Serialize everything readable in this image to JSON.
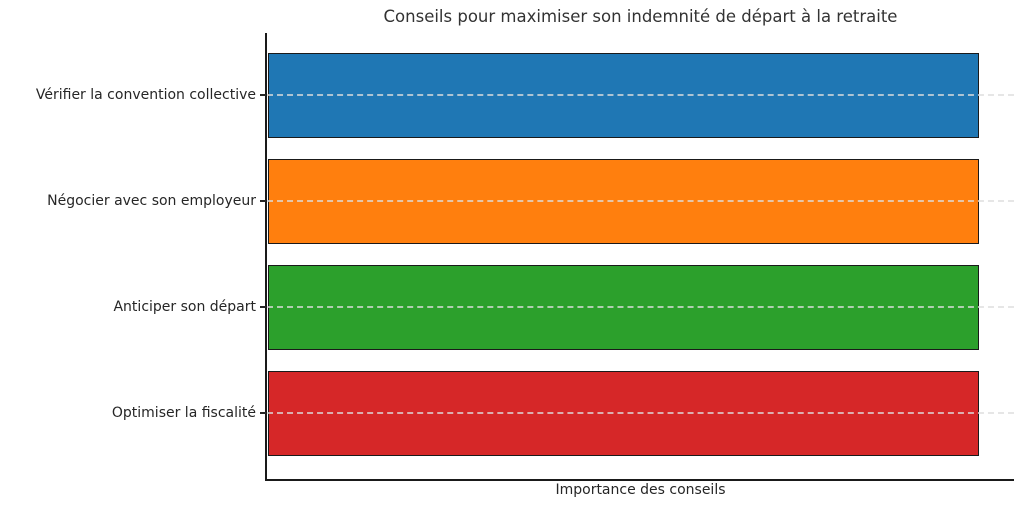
{
  "chart_data": {
    "type": "bar",
    "orientation": "horizontal",
    "title": "Conseils pour maximiser son indemnité de départ à la retraite",
    "xlabel": "Importance des conseils",
    "ylabel": "",
    "categories": [
      "Vérifier la convention collective",
      "Négocier avec son employeur",
      "Anticiper son départ",
      "Optimiser la fiscalité"
    ],
    "values": [
      1,
      1,
      1,
      1
    ],
    "xlim": [
      0,
      1.05
    ],
    "x_tick_labels": [],
    "bar_colors": [
      "#1f77b4",
      "#ff7f0e",
      "#2ca02c",
      "#d62728"
    ],
    "bar_edge_color": "#1a1a1a",
    "grid": "horizontal dashed lines at each category center, drawn over bars",
    "grid_color": "#dedede",
    "legend": "none",
    "spines": [
      "left",
      "bottom"
    ],
    "text_color": "#262626",
    "background_color": "#ffffff"
  }
}
